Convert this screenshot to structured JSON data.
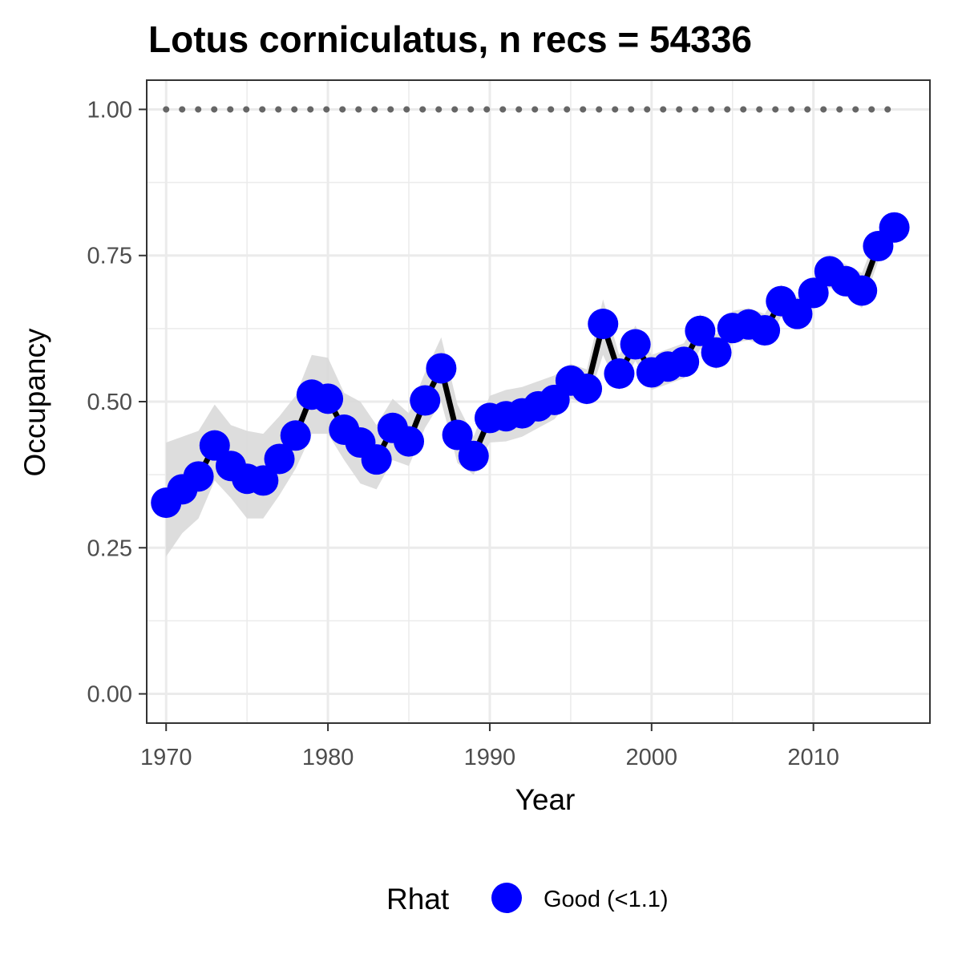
{
  "chart_data": {
    "type": "line",
    "title": "Lotus corniculatus, n recs = 54336",
    "xlabel": "Year",
    "ylabel": "Occupancy",
    "xlim": [
      1968.8,
      2017.2
    ],
    "ylim": [
      -0.05,
      1.05
    ],
    "x_ticks": [
      1970,
      1980,
      1990,
      2000,
      2010
    ],
    "x_tick_labels": [
      "1970",
      "1980",
      "1990",
      "2000",
      "2010"
    ],
    "y_ticks": [
      0,
      0.25,
      0.5,
      0.75,
      1
    ],
    "y_tick_labels": [
      "0.00",
      "0.25",
      "0.50",
      "0.75",
      "1.00"
    ],
    "grid": true,
    "legend": {
      "position": "bottom",
      "title": "Rhat",
      "entries": [
        {
          "label": "Good (<1.1)",
          "color": "#0000ff"
        }
      ]
    },
    "reference_line": {
      "y": 1.0,
      "style": "dotted",
      "color": "#666666"
    },
    "series": [
      {
        "name": "Good (<1.1)",
        "color": "#0000ff",
        "line_color": "#000000",
        "ribbon_color": "#d9d9d9",
        "x": [
          1970,
          1971,
          1972,
          1973,
          1974,
          1975,
          1976,
          1977,
          1978,
          1979,
          1980,
          1981,
          1982,
          1983,
          1984,
          1985,
          1986,
          1987,
          1988,
          1989,
          1990,
          1991,
          1992,
          1993,
          1994,
          1995,
          1996,
          1997,
          1998,
          1999,
          2000,
          2001,
          2002,
          2003,
          2004,
          2005,
          2006,
          2007,
          2008,
          2009,
          2010,
          2011,
          2012,
          2013,
          2014,
          2015
        ],
        "y": [
          0.327,
          0.35,
          0.372,
          0.425,
          0.39,
          0.368,
          0.365,
          0.402,
          0.442,
          0.512,
          0.505,
          0.452,
          0.43,
          0.401,
          0.455,
          0.432,
          0.502,
          0.557,
          0.443,
          0.407,
          0.472,
          0.475,
          0.48,
          0.492,
          0.503,
          0.536,
          0.522,
          0.633,
          0.548,
          0.598,
          0.55,
          0.56,
          0.568,
          0.621,
          0.584,
          0.626,
          0.632,
          0.622,
          0.672,
          0.65,
          0.686,
          0.723,
          0.706,
          0.69,
          0.766,
          0.798
        ],
        "lower": [
          0.235,
          0.275,
          0.3,
          0.365,
          0.335,
          0.3,
          0.3,
          0.34,
          0.385,
          0.445,
          0.445,
          0.4,
          0.36,
          0.35,
          0.4,
          0.39,
          0.455,
          0.5,
          0.395,
          0.375,
          0.43,
          0.432,
          0.44,
          0.455,
          0.47,
          0.505,
          0.495,
          0.58,
          0.52,
          0.57,
          0.52,
          0.53,
          0.54,
          0.59,
          0.555,
          0.6,
          0.605,
          0.595,
          0.645,
          0.625,
          0.66,
          0.695,
          0.68,
          0.66,
          0.74,
          0.775
        ],
        "upper": [
          0.43,
          0.44,
          0.45,
          0.495,
          0.46,
          0.45,
          0.445,
          0.475,
          0.51,
          0.58,
          0.575,
          0.515,
          0.5,
          0.46,
          0.505,
          0.48,
          0.55,
          0.61,
          0.495,
          0.44,
          0.51,
          0.52,
          0.525,
          0.535,
          0.545,
          0.565,
          0.555,
          0.675,
          0.58,
          0.63,
          0.58,
          0.59,
          0.6,
          0.65,
          0.615,
          0.655,
          0.66,
          0.65,
          0.7,
          0.678,
          0.712,
          0.75,
          0.735,
          0.72,
          0.792,
          0.82
        ]
      }
    ]
  }
}
